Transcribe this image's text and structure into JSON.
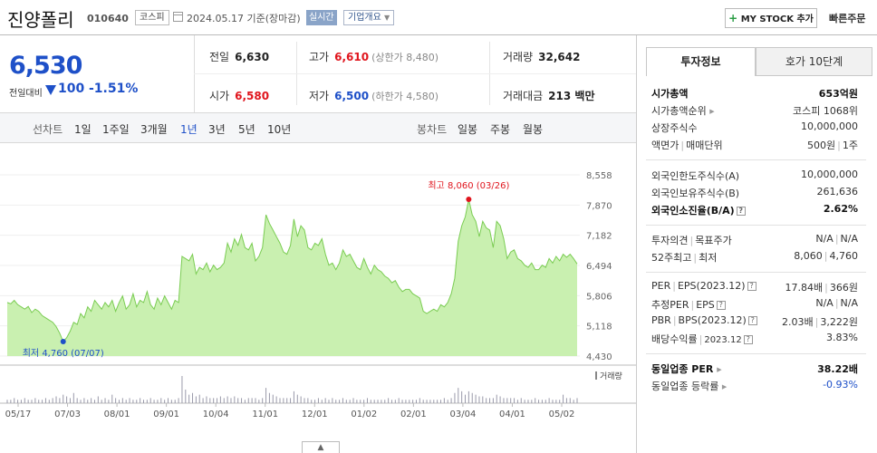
{
  "header": {
    "stock_name": "진양폴리",
    "stock_code": "010640",
    "market": "코스피",
    "date_text": "2024.05.17  기준(장마감)",
    "realtime_label": "실시간",
    "corp_info_label": "기업개요",
    "mystock_label": "MY STOCK 추가",
    "quick_order_label": "빠른주문"
  },
  "price": {
    "current": "6,530",
    "change_label": "전일대비",
    "change_value": "100",
    "change_rate": "-1.51%",
    "direction": "down"
  },
  "quote": {
    "prev_close": {
      "label": "전일",
      "value": "6,630"
    },
    "high": {
      "label": "고가",
      "value": "6,610",
      "sub": "(상한가 8,480)"
    },
    "volume": {
      "label": "거래량",
      "value": "32,642"
    },
    "open": {
      "label": "시가",
      "value": "6,580"
    },
    "low": {
      "label": "저가",
      "value": "6,500",
      "sub": "(하한가 4,580)"
    },
    "amount": {
      "label": "거래대금",
      "value": "213 백만"
    }
  },
  "periods": {
    "line_title": "선차트",
    "line_items": [
      "1일",
      "1주일",
      "3개월",
      "1년",
      "3년",
      "5년",
      "10년"
    ],
    "line_active": "1년",
    "candle_title": "봉차트",
    "candle_items": [
      "일봉",
      "주봉",
      "월봉"
    ]
  },
  "chart_data": {
    "type": "area",
    "y_ticks": [
      "8,558",
      "7,870",
      "7,182",
      "6,494",
      "5,806",
      "5,118",
      "4,430"
    ],
    "ylim": [
      4430,
      8558
    ],
    "x_ticks": [
      "05/17",
      "07/03",
      "08/01",
      "09/01",
      "10/04",
      "11/01",
      "12/01",
      "01/02",
      "02/01",
      "03/04",
      "04/01",
      "05/02"
    ],
    "max_label": "최고 8,060 (03/26)",
    "min_label": "최저 4,760 (07/07)",
    "volume_label": "거래량",
    "series": [
      {
        "values": [
          5650,
          5620,
          5700,
          5600,
          5550,
          5500,
          5560,
          5420,
          5500,
          5450,
          5350,
          5300,
          5250,
          5200,
          5100,
          4950,
          4760,
          4850,
          5000,
          5200,
          5150,
          5400,
          5300,
          5550,
          5450,
          5700,
          5600,
          5500,
          5650,
          5550,
          5700,
          5450,
          5650,
          5800,
          5500,
          5600,
          5850,
          5550,
          5700,
          5650,
          5900,
          5600,
          5500,
          5750,
          5600,
          5800,
          5650,
          5500,
          5700,
          5650,
          6700,
          6650,
          6600,
          6750,
          6300,
          6450,
          6400,
          6550,
          6350,
          6500,
          6400,
          6450,
          6550,
          7000,
          6800,
          7100,
          6950,
          7200,
          6900,
          6850,
          7000,
          6600,
          6700,
          6900,
          7650,
          7450,
          7300,
          7150,
          7000,
          6800,
          6750,
          6950,
          7550,
          7150,
          7400,
          7300,
          6900,
          6850,
          7000,
          6950,
          7100,
          6750,
          6500,
          6550,
          6400,
          6550,
          6850,
          6700,
          6750,
          6600,
          6450,
          6400,
          6650,
          6450,
          6300,
          6500,
          6400,
          6350,
          6250,
          6200,
          6100,
          6150,
          6000,
          5900,
          5950,
          5950,
          5850,
          5800,
          5750,
          5450,
          5400,
          5450,
          5500,
          5450,
          5600,
          5550,
          5650,
          5850,
          6200,
          7050,
          7400,
          7600,
          8000,
          7650,
          7500,
          7150,
          7500,
          7350,
          7300,
          6900,
          7500,
          7400,
          7100,
          6650,
          6800,
          6850,
          6650,
          6600,
          6500,
          6450,
          6550,
          6400,
          6400,
          6500,
          6450,
          6650,
          6550,
          6700,
          6600,
          6750,
          6680,
          6750,
          6650,
          6530
        ]
      }
    ],
    "volume_series": [
      2,
      2,
      3,
      2,
      2,
      3,
      2,
      2,
      3,
      2,
      2,
      3,
      2,
      3,
      4,
      3,
      5,
      4,
      3,
      6,
      3,
      2,
      3,
      2,
      3,
      2,
      4,
      2,
      3,
      2,
      5,
      3,
      2,
      3,
      2,
      3,
      2,
      2,
      3,
      2,
      2,
      3,
      2,
      2,
      3,
      2,
      3,
      2,
      2,
      3,
      16,
      8,
      5,
      6,
      4,
      5,
      3,
      4,
      3,
      3,
      3,
      4,
      3,
      4,
      3,
      4,
      3,
      3,
      2,
      3,
      3,
      3,
      2,
      3,
      9,
      6,
      5,
      4,
      3,
      3,
      3,
      3,
      7,
      5,
      4,
      3,
      3,
      2,
      2,
      3,
      2,
      3,
      2,
      3,
      2,
      2,
      3,
      2,
      2,
      3,
      2,
      2,
      2,
      3,
      2,
      2,
      2,
      2,
      2,
      3,
      2,
      2,
      3,
      2,
      2,
      2,
      2,
      2,
      3,
      2,
      2,
      2,
      2,
      2,
      2,
      3,
      2,
      3,
      6,
      9,
      7,
      5,
      7,
      6,
      5,
      4,
      4,
      3,
      3,
      3,
      5,
      4,
      3,
      3,
      3,
      3,
      2,
      3,
      2,
      2,
      2,
      3,
      2,
      2,
      2,
      3,
      2,
      2,
      2,
      5,
      3,
      3,
      2,
      3
    ]
  },
  "side": {
    "tab_invest": "투자정보",
    "tab_orderbook": "호가 10단계",
    "market_cap_label": "시가총액",
    "market_cap_value": "653억원",
    "rank_label": "시가총액순위",
    "rank_value": "코스피 1068위",
    "shares_label": "상장주식수",
    "shares_value": "10,000,000",
    "par_label": "액면가",
    "unit_label": "매매단위",
    "par_value": "500원",
    "unit_value": "1주",
    "foreign_limit_label": "외국인한도주식수(A)",
    "foreign_limit_value": "10,000,000",
    "foreign_hold_label": "외국인보유주식수(B)",
    "foreign_hold_value": "261,636",
    "foreign_rate_label": "외국인소진율(B/A)",
    "foreign_rate_value": "2.62%",
    "opinion_label": "투자의견",
    "target_label": "목표주가",
    "opinion_value": "N/A",
    "target_value": "N/A",
    "w52_label": "52주최고",
    "w52_low_label": "최저",
    "w52_high": "8,060",
    "w52_low": "4,760",
    "per_label": "PER",
    "eps_label": "EPS(2023.12)",
    "per_value": "17.84배",
    "eps_value": "366원",
    "est_per_label": "추정PER",
    "est_eps_label": "EPS",
    "est_per_value": "N/A",
    "est_eps_value": "N/A",
    "pbr_label": "PBR",
    "bps_label": "BPS(2023.12)",
    "pbr_value": "2.03배",
    "bps_value": "3,222원",
    "div_label": "배당수익률",
    "div_date": "2023.12",
    "div_value": "3.83%",
    "industry_per_label": "동일업종 PER",
    "industry_per_value": "38.22배",
    "industry_rate_label": "동일업종 등락률",
    "industry_rate_value": "-0.93%"
  },
  "collapse_icon": "chevron-up-icon",
  "colors": {
    "up": "#e0151d",
    "down": "#1e50c8",
    "area_fill": "#c9f0b0",
    "area_line": "#7acc52"
  }
}
